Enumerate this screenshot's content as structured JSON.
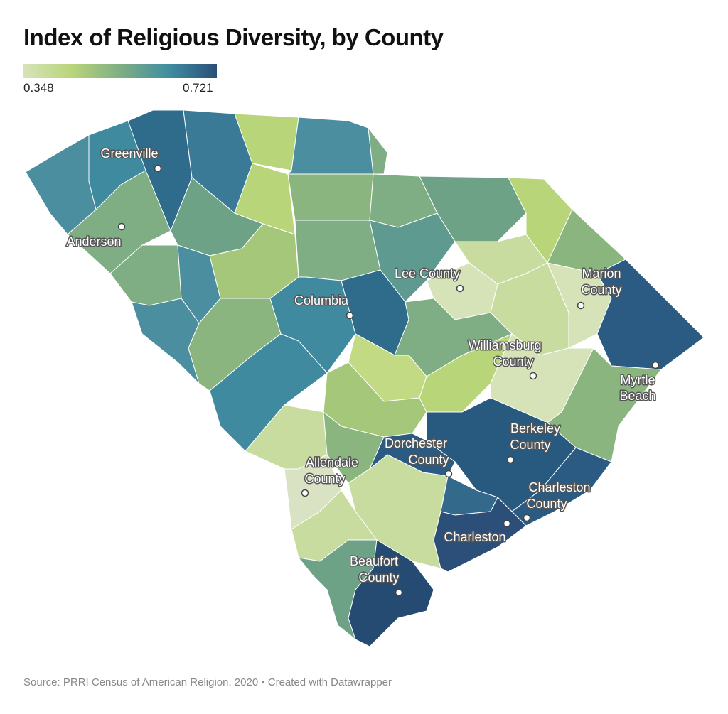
{
  "title": "Index of Religious Diversity, by County",
  "legend": {
    "min_label": "0.348",
    "max_label": "0.721",
    "colors": [
      "#d6e3b8",
      "#b9d57a",
      "#7fae84",
      "#3f8ea0",
      "#2b5b82"
    ]
  },
  "footer": "Source: PRRI Census of American Religion, 2020 • Created with Datawrapper",
  "labels": {
    "greenville": "Greenville",
    "anderson": "Anderson",
    "columbia": "Columbia",
    "lee": [
      "Lee County"
    ],
    "marion": [
      "Marion",
      "County"
    ],
    "williamsburg": [
      "Williamsburg",
      "County"
    ],
    "myrtle": [
      "Myrtle",
      "Beach"
    ],
    "berkeley": [
      "Berkeley",
      "County"
    ],
    "dorchester": [
      "Dorchester",
      "County"
    ],
    "allendale": [
      "Allendale",
      "County"
    ],
    "charleston_county": [
      "Charleston",
      "County"
    ],
    "charleston": "Charleston",
    "beaufort": [
      "Beaufort",
      "County"
    ]
  }
}
